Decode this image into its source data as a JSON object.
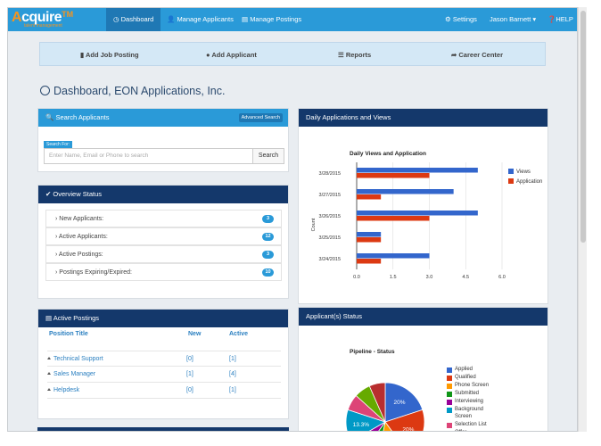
{
  "navbar": {
    "brand": "cquire",
    "brand_initial": "A",
    "trademark": "TM",
    "tagline": "talent management",
    "items": [
      {
        "label": "Dashboard",
        "icon": "dashboard-icon"
      },
      {
        "label": "Manage Applicants",
        "icon": "user-icon"
      },
      {
        "label": "Manage Postings",
        "icon": "file-icon"
      }
    ],
    "settings": "Settings",
    "user": "Jason Barnett",
    "help": "HELP"
  },
  "quickbar": {
    "add_job_posting": "Add Job Posting",
    "add_applicant": "Add Applicant",
    "reports": "Reports",
    "career_center": "Career Center"
  },
  "page_title": "Dashboard, EON Applications, Inc.",
  "search": {
    "title": "Search Applicants",
    "advanced": "Advanced Search",
    "label": "Search For:",
    "placeholder": "Enter Name, Email or Phone to search",
    "button": "Search"
  },
  "overview": {
    "title": "Overview Status",
    "rows": [
      {
        "label": "New Applicants:",
        "count": "3"
      },
      {
        "label": "Active Applicants:",
        "count": "12"
      },
      {
        "label": "Active Postings:",
        "count": "3"
      },
      {
        "label": "Postings Expiring/Expired:",
        "count": "10"
      }
    ]
  },
  "active_postings": {
    "title": "Active Postings",
    "columns": [
      "Position Title",
      "New",
      "Active"
    ],
    "rows": [
      {
        "title": "Technical Support",
        "new": "[0]",
        "active": "[1]"
      },
      {
        "title": "Sales Manager",
        "new": "[1]",
        "active": "[4]"
      },
      {
        "title": "Helpdesk",
        "new": "[0]",
        "active": "[1]"
      }
    ]
  },
  "daily_panel": {
    "title": "Daily Applications and Views"
  },
  "status_panel": {
    "title": "Applicant(s) Status"
  },
  "colors": {
    "views": "#3366cc",
    "application": "#dc3912",
    "nav": "#2a9ad8",
    "navy": "#14386b"
  },
  "chart_data": [
    {
      "type": "bar",
      "orientation": "horizontal",
      "title": "Daily Views and Application",
      "ylabel": "Count",
      "categories": [
        "3/28/2015",
        "3/27/2015",
        "3/26/2015",
        "3/25/2015",
        "3/24/2015"
      ],
      "series": [
        {
          "name": "Views",
          "color": "#3366cc",
          "values": [
            5,
            4,
            5,
            1,
            3
          ]
        },
        {
          "name": "Application",
          "color": "#dc3912",
          "values": [
            3,
            1,
            3,
            1,
            1
          ]
        }
      ],
      "xticks": [
        "0.0",
        "1.5",
        "3.0",
        "4.5",
        "6.0"
      ],
      "xlim": [
        0,
        6
      ],
      "grid": true,
      "legend": "right"
    },
    {
      "type": "pie",
      "title": "Pipeline - Status",
      "legend": "right",
      "slices": [
        {
          "label": "Applied",
          "value": 20,
          "color": "#3366cc",
          "text": "20%"
        },
        {
          "label": "Qualified",
          "value": 20,
          "color": "#dc3912",
          "text": "20%"
        },
        {
          "label": "Phone Screen",
          "value": 13.3,
          "color": "#ff9900",
          "text": ""
        },
        {
          "label": "Submitted",
          "value": 6.7,
          "color": "#109618",
          "text": ""
        },
        {
          "label": "Interviewing",
          "value": 6.7,
          "color": "#990099",
          "text": ""
        },
        {
          "label": "Background Screen",
          "value": 13.3,
          "color": "#0099c6",
          "text": "13.3%"
        },
        {
          "label": "Selection List",
          "value": 6.7,
          "color": "#dd4477",
          "text": ""
        },
        {
          "label": "Offer",
          "value": 6.7,
          "color": "#66aa00",
          "text": ""
        },
        {
          "label": "",
          "value": 6.6,
          "color": "#b82e2e",
          "text": ""
        }
      ]
    }
  ]
}
